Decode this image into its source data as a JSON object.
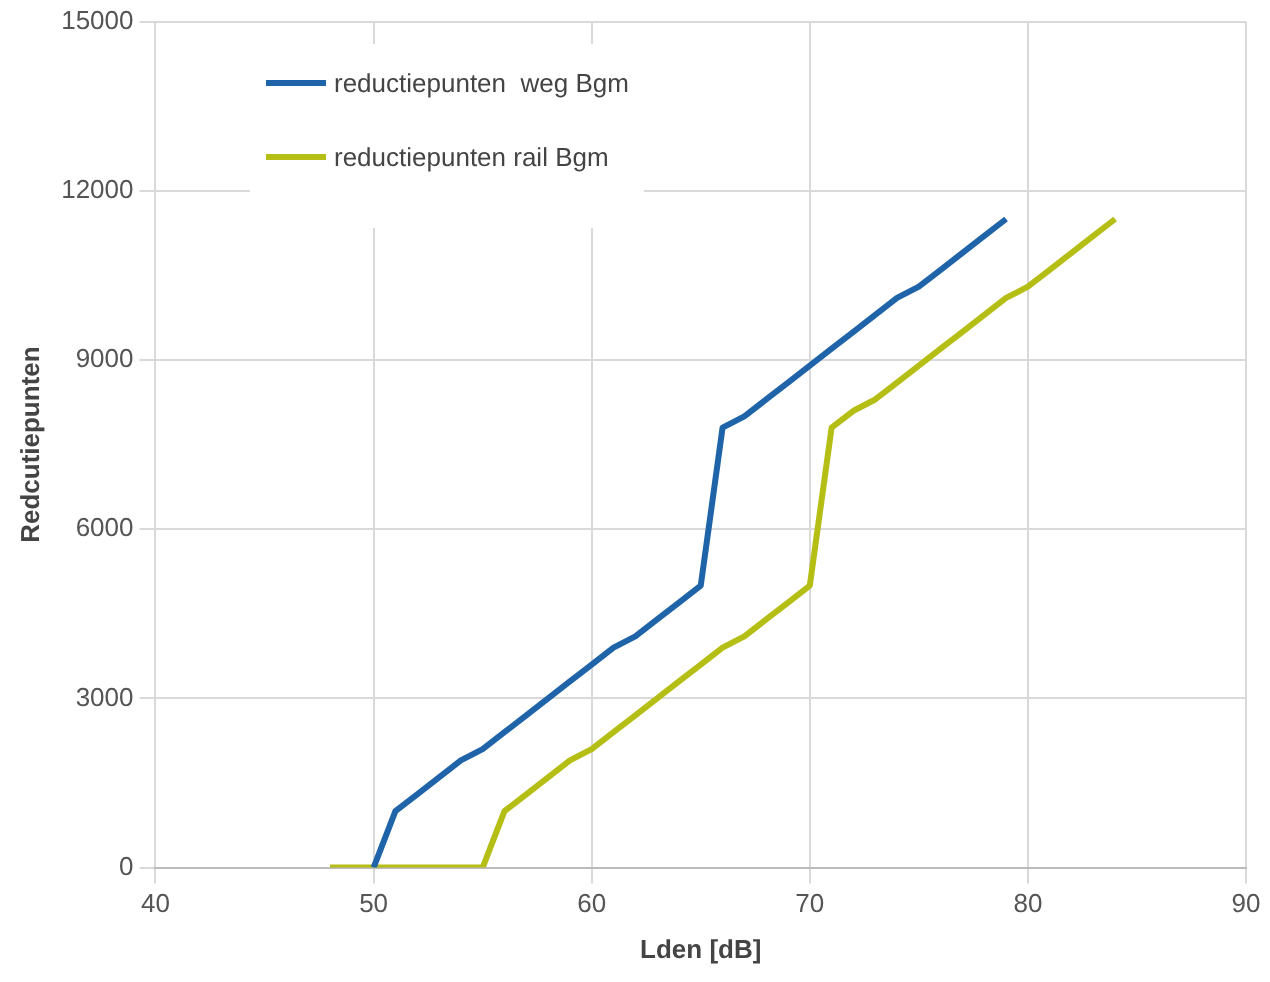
{
  "chart_data": {
    "type": "line",
    "xlabel": "Lden [dB]",
    "ylabel": "Redcutiepunten",
    "xlim": [
      40,
      90
    ],
    "xticks": [
      40,
      50,
      60,
      70,
      80,
      90
    ],
    "ylim": [
      0,
      15000
    ],
    "yticks": [
      0,
      3000,
      6000,
      9000,
      12000,
      15000
    ],
    "grid": true,
    "legend": "top left",
    "marker": "none",
    "line_style": "solid",
    "series": [
      {
        "name": "reductiepunten  weg Bgm",
        "color": "#1f64a8",
        "x": [
          50,
          51,
          52,
          53,
          54,
          55,
          56,
          57,
          58,
          59,
          60,
          61,
          62,
          63,
          64,
          65,
          66,
          67,
          68,
          69,
          70,
          71,
          72,
          73,
          74,
          75,
          76,
          77,
          78,
          79
        ],
        "values": [
          0,
          1000,
          1300,
          1600,
          1900,
          2100,
          2400,
          2700,
          3000,
          3300,
          3600,
          3900,
          4100,
          4400,
          4700,
          5000,
          7800,
          8000,
          8300,
          8600,
          8900,
          9200,
          9500,
          9800,
          10100,
          10300,
          10600,
          10900,
          11200,
          11500
        ]
      },
      {
        "name": "reductiepunten rail Bgm",
        "color": "#b5be14",
        "x": [
          48,
          55,
          56,
          57,
          58,
          59,
          60,
          61,
          62,
          63,
          64,
          65,
          66,
          67,
          68,
          69,
          70,
          71,
          72,
          73,
          74,
          75,
          76,
          77,
          78,
          79,
          80,
          81,
          82,
          83,
          84
        ],
        "values": [
          0,
          0,
          1000,
          1300,
          1600,
          1900,
          2100,
          2400,
          2700,
          3000,
          3300,
          3600,
          3900,
          4100,
          4400,
          4700,
          5000,
          7800,
          8100,
          8300,
          8600,
          8900,
          9200,
          9500,
          9800,
          10100,
          10300,
          10600,
          10900,
          11200,
          11500
        ]
      }
    ]
  }
}
